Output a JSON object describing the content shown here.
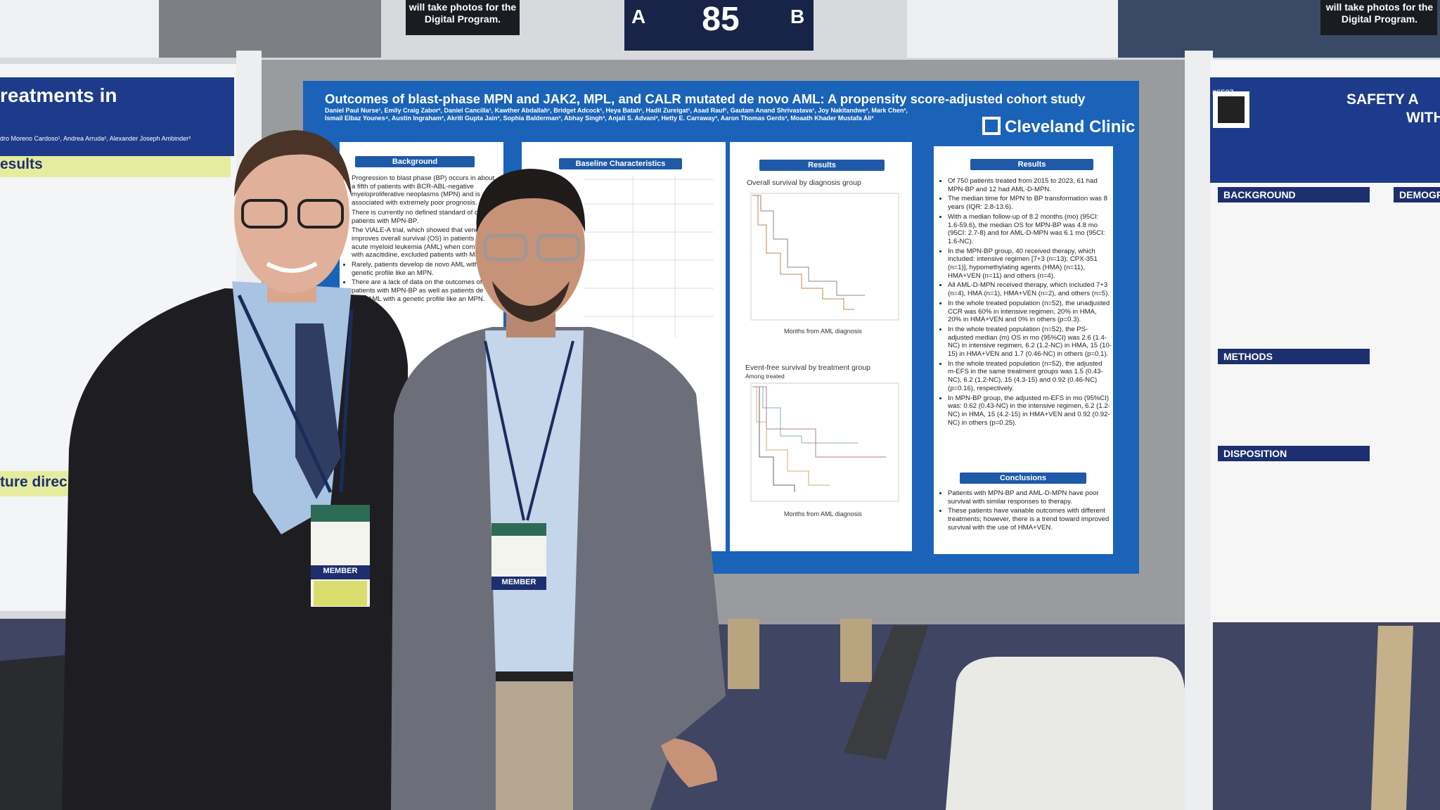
{
  "signs": {
    "left": "will take photos for the Digital Program.",
    "right": "will take photos for the Digital Program."
  },
  "board": {
    "left": "A",
    "number": "85",
    "right": "B"
  },
  "poster": {
    "title": "Outcomes of blast-phase MPN and JAK2, MPL, and CALR mutated de novo AML: A propensity score-adjusted cohort study",
    "authors": "Daniel Paul Nurse¹, Emily Craig Zabor², Daniel Cancilla¹, Kawther Abdallah¹, Bridget Adcock¹, Heya Batah¹, Hadil Zureigat¹, Asad Rauf¹, Gautam Anand Shrivastava¹, Joy Nakitandwe³, Mark Chen³, Ismail Elbaz Younes⁴, Austin Ingraham³, Akriti Gupta Jain³, Sophia Balderman³, Abhay Singh³, Anjali S. Advani³, Hetty E. Carraway³, Aaron Thomas Gerds³, Moaath Khader Mustafa Ali³",
    "logo": "Cleveland Clinic",
    "sections": {
      "background": "Background",
      "baseline": "Baseline Characteristics",
      "results_chart": "Results",
      "results": "Results",
      "conclusions": "Conclusions"
    },
    "chart1_title": "Overall survival by diagnosis group",
    "chart2_title": "Event-free survival by treatment group",
    "chart2_subtitle": "Among treated",
    "x_label": "Months from AML diagnosis",
    "background_bullets": [
      "Progression to blast phase (BP) occurs in about a fifth of patients with BCR-ABL-negative myeloproliferative neoplasms (MPN) and is associated with extremely poor prognosis.",
      "There is currently no defined standard of care for patients with MPN-BP.",
      "The VIALE-A trial, which showed that venetoclax improves overall survival (OS) in patients with acute myeloid leukemia (AML) when combined with azacitidine, excluded patients with MPN-BP.",
      "Rarely, patients develop de novo AML with a genetic profile like an MPN.",
      "There are a lack of data on the outcomes of patients with MPN-BP as well as patients de novo AML with a genetic profile like an MPN."
    ],
    "results_bullets": [
      "Of 750 patients treated from 2015 to 2023, 61 had MPN-BP and 12 had AML-D-MPN.",
      "The median time for MPN to BP transformation was 8 years (IQR: 2.8-13.6).",
      "With a median follow-up of 8.2 months (mo) (95CI: 1.6-59.6), the median OS for MPN-BP was 4.8 mo (95CI: 2.7-8) and for AML-D-MPN was 6.1 mo (95CI: 1.6-NC).",
      "In the MPN-BP group, 40 received therapy, which included: intensive regimen [7+3 (n=13); CPX-351 (n=1)], hypomethylating agents (HMA) (n=11), HMA+VEN (n=11) and others (n=4).",
      "All AML-D-MPN received therapy, which included 7+3 (n=4), HMA (n=1), HMA+VEN (n=2), and others (n=5).",
      "In the whole treated population (n=52), the unadjusted CCR was 60% in intensive regimen, 20% in HMA, 20% in HMA+VEN and 0% in others (p=0.3).",
      "In the whole treated population (n=52), the PS-adjusted median (m) OS in mo (95%CI) was 2.6 (1.4-NC) in intensive regimen, 6.2 (1.2-NC) in HMA, 15 (10-15) in HMA+VEN and 1.7 (0.46-NC) in others (p=0.1).",
      "In the whole treated population (n=52), the adjusted m-EFS in the same treatment groups was 1.5 (0.43-NC), 6.2 (1.2-NC), 15 (4.3-15) and 0.92 (0.46-NC) (p=0.16), respectively.",
      "In MPN-BP group, the adjusted m-EFS in mo (95%CI) was: 0.62 (0.43-NC) in the intensive regimen, 6.2 (1.2-NC) in HMA, 15 (4.2-15) in HMA+VEN and 0.92 (0.92-NC) in others (p=0.25)."
    ],
    "conclusion_bullets": [
      "Patients with MPN-BP and AML-D-MPN have poor survival with similar responses to therapy.",
      "These patients have variable outcomes with different treatments; however, there is a trend toward improved survival with the use of HMA+VEN."
    ]
  },
  "left_poster": {
    "header": "reatments in",
    "authors": "dro Moreno Cardoso¹, Andrea Arruda², Alexander Joseph Ambinder³",
    "section1": "esults",
    "section2": "ture direc"
  },
  "right_poster": {
    "header": "SAFETY A",
    "header2": "WITH",
    "code": "#6527",
    "sections": [
      "BACKGROUND",
      "METHODS",
      "DISPOSITION"
    ],
    "side": "DEMOGR"
  },
  "badges": [
    "MEMBER",
    "MEMBER"
  ]
}
